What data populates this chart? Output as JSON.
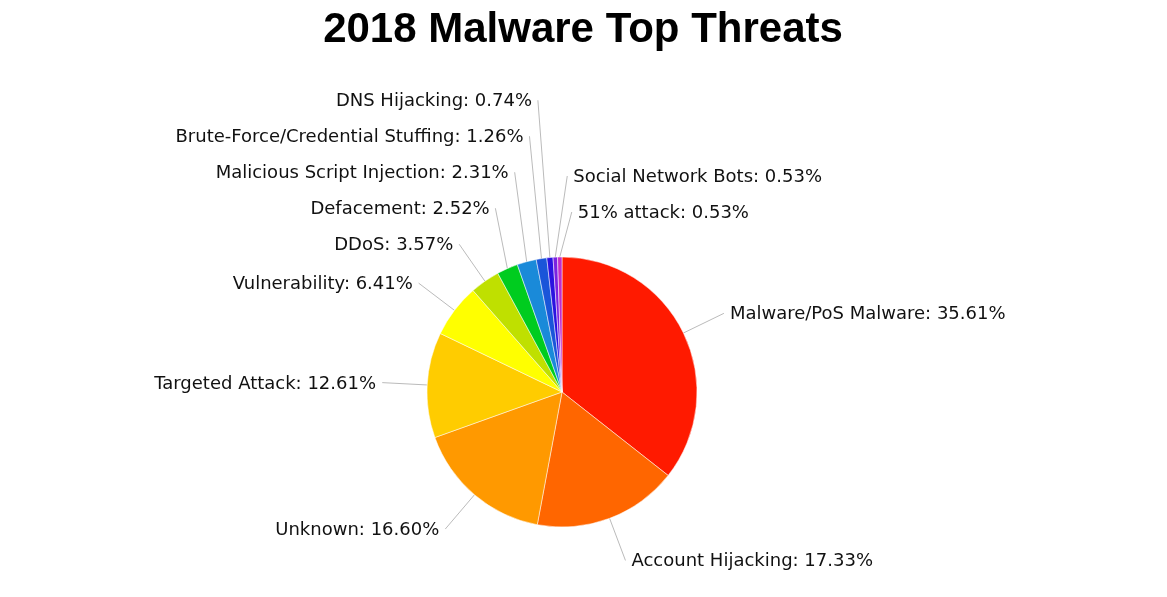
{
  "chart_data": {
    "type": "pie",
    "title": "2018 Malware Top Threats",
    "categories": [
      "Malware/PoS Malware",
      "Account Hijacking",
      "Unknown",
      "Targeted Attack",
      "Vulnerability",
      "DDoS",
      "Defacement",
      "Malicious Script Injection",
      "Brute-Force/Credential Stuffing",
      "DNS Hijacking",
      "Social Network Bots",
      "51% attack"
    ],
    "values": [
      35.61,
      17.33,
      16.6,
      12.61,
      6.41,
      3.57,
      2.52,
      2.31,
      1.26,
      0.74,
      0.53,
      0.53
    ],
    "value_labels": [
      "35.61%",
      "17.33%",
      "16.60%",
      "12.61%",
      "6.41%",
      "3.57%",
      "2.52%",
      "2.31%",
      "1.26%",
      "0.74%",
      "0.53%",
      "0.53%"
    ],
    "colors": [
      "#ff1a00",
      "#ff6600",
      "#ff9900",
      "#ffcc00",
      "#ffff00",
      "#bfe000",
      "#00cc1f",
      "#1a8ad9",
      "#1a55d9",
      "#2a12e0",
      "#7a22e0",
      "#c02ccc"
    ]
  }
}
